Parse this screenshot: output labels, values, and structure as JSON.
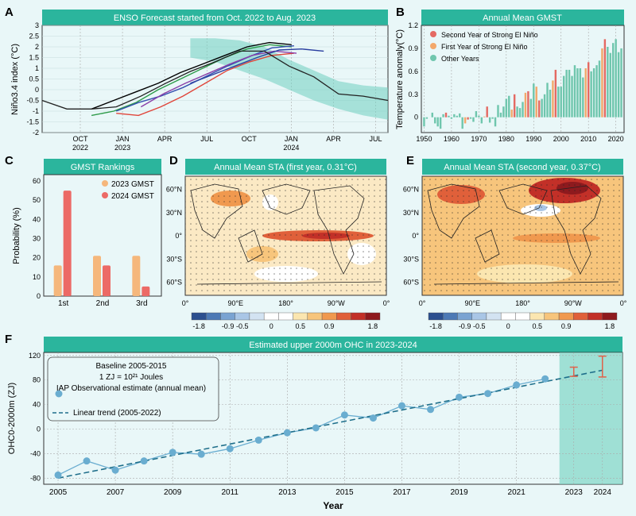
{
  "panels": {
    "A": {
      "letter": "A",
      "title": "ENSO Forecast started from Oct. 2022 to Aug. 2023",
      "ylabel": "Niño3.4 index (°C)",
      "x_ticks": [
        "OCT",
        "JAN",
        "APR",
        "JUL",
        "OCT",
        "JAN",
        "APR",
        "JUL"
      ],
      "x_years": [
        "2022",
        "2023",
        "2024"
      ]
    },
    "B": {
      "letter": "B",
      "title": "Annual Mean GMST",
      "ylabel": "Temperature anomaly(°C)"
    },
    "C": {
      "letter": "C",
      "title": "GMST Rankings",
      "ylabel": "Probability (%)"
    },
    "D": {
      "letter": "D",
      "title": "Annual Mean STA (first year, 0.31°C)"
    },
    "E": {
      "letter": "E",
      "title": "Annual Mean STA (second year, 0.37°C)"
    },
    "F": {
      "letter": "F",
      "title": "Estimated upper 2000m OHC in 2023-2024",
      "ylabel": "OHC0-2000m (ZJ)",
      "xlabel": "Year",
      "baseline": "Baseline 2005-2015",
      "zj_note": "1 ZJ = 10²¹ Joules"
    }
  },
  "map_axes": {
    "lat_ticks": [
      "60°N",
      "30°N",
      "0°",
      "30°S",
      "60°S"
    ],
    "lon_ticks": [
      "0°",
      "90°E",
      "180°",
      "90°W",
      "0°"
    ]
  },
  "colorbar": {
    "ticks": [
      "-1.8",
      "-0.9",
      "-0.5",
      "0",
      "0.5",
      "0.9",
      "1.8"
    ],
    "colors": [
      "#2b4f8f",
      "#4c79b5",
      "#7aa3d2",
      "#a9c6e6",
      "#d3e3f2",
      "#ffffff",
      "#ffffff",
      "#fbe6b0",
      "#f7c57c",
      "#f0994f",
      "#e0603a",
      "#c23028",
      "#8e1a1e"
    ]
  },
  "chart_data": [
    {
      "type": "line",
      "title": "ENSO Forecast started from Oct. 2022 to Aug. 2023",
      "ylabel": "Niño3.4 index (°C)",
      "ylim": [
        -2,
        3
      ],
      "x_labels": [
        "OCT 2022",
        "JAN 2023",
        "APR",
        "JUL",
        "OCT",
        "JAN 2024",
        "APR",
        "JUL"
      ],
      "observed": [
        -0.5,
        -0.9,
        -0.9,
        -0.8,
        -0.3,
        0.3,
        0.85,
        1.3,
        1.8,
        1.8,
        1.1,
        0.6,
        -0.2,
        -0.3,
        -0.5
      ],
      "forecasts": [
        {
          "color": "#000000",
          "values": [
            -0.9,
            -0.5,
            -0.1,
            0.3,
            0.8,
            1.2,
            1.6,
            2.0,
            2.2,
            2.1
          ]
        },
        {
          "color": "#2e9b4a",
          "values": [
            -1.2,
            -1.0,
            -0.6,
            0.0,
            0.5,
            1.0,
            1.5,
            1.9,
            2.1,
            2.0
          ]
        },
        {
          "color": "#3550b0",
          "values": [
            -1.0,
            -0.6,
            -0.3,
            0.1,
            0.6,
            1.1,
            1.55,
            1.95,
            2.05
          ]
        },
        {
          "color": "#e0453a",
          "values": [
            -1.1,
            -1.2,
            -0.8,
            -0.3,
            0.3,
            0.9,
            1.3,
            1.6,
            1.7
          ]
        },
        {
          "color": "#8a3fa8",
          "values": [
            -0.8,
            -0.2,
            0.3,
            0.75,
            1.2,
            1.6,
            1.8,
            1.7
          ]
        },
        {
          "color": "#2a3fa0",
          "values": [
            0.3,
            0.7,
            1.1,
            1.5,
            1.85,
            1.9,
            1.8
          ]
        }
      ],
      "spread_upper": [
        2.4,
        2.4,
        2.3,
        2.0,
        1.4,
        0.9,
        0.4,
        0.2,
        0.1
      ],
      "spread_lower": [
        1.5,
        1.3,
        0.9,
        0.5,
        0.0,
        -0.5,
        -0.9,
        -1.2,
        -1.4
      ]
    },
    {
      "type": "bar",
      "title": "Annual Mean GMST",
      "ylabel": "Temperature anomaly(°C)",
      "ylim": [
        -0.2,
        1.2
      ],
      "x_ticks": [
        "1950",
        "1960",
        "1970",
        "1980",
        "1990",
        "2000",
        "2010",
        "2020"
      ],
      "legend": [
        "Second Year of Strong El Niño",
        "First Year of Strong El Niño",
        "Other Years"
      ],
      "series_colors": {
        "second": "#e46a63",
        "first": "#f3a86b",
        "other": "#6fc6ad"
      },
      "x": [
        1950,
        1951,
        1952,
        1953,
        1954,
        1955,
        1956,
        1957,
        1958,
        1959,
        1960,
        1961,
        1962,
        1963,
        1964,
        1965,
        1966,
        1967,
        1968,
        1969,
        1970,
        1971,
        1972,
        1973,
        1974,
        1975,
        1976,
        1977,
        1978,
        1979,
        1980,
        1981,
        1982,
        1983,
        1984,
        1985,
        1986,
        1987,
        1988,
        1989,
        1990,
        1991,
        1992,
        1993,
        1994,
        1995,
        1996,
        1997,
        1998,
        1999,
        2000,
        2001,
        2002,
        2003,
        2004,
        2005,
        2006,
        2007,
        2008,
        2009,
        2010,
        2011,
        2012,
        2013,
        2014,
        2015,
        2016,
        2017,
        2018,
        2019,
        2020,
        2021,
        2022
      ],
      "values": [
        -0.12,
        -0.02,
        0.0,
        0.06,
        -0.08,
        -0.12,
        -0.15,
        0.04,
        0.06,
        0.02,
        -0.02,
        0.04,
        0.02,
        0.05,
        -0.15,
        -0.08,
        -0.03,
        -0.02,
        -0.06,
        0.08,
        0.02,
        -0.08,
        0.01,
        0.14,
        -0.07,
        -0.02,
        -0.12,
        0.16,
        0.06,
        0.14,
        0.24,
        0.28,
        0.1,
        0.3,
        0.14,
        0.12,
        0.2,
        0.32,
        0.34,
        0.24,
        0.44,
        0.4,
        0.22,
        0.24,
        0.3,
        0.45,
        0.36,
        0.48,
        0.62,
        0.4,
        0.4,
        0.54,
        0.62,
        0.62,
        0.54,
        0.68,
        0.64,
        0.64,
        0.52,
        0.64,
        0.72,
        0.6,
        0.64,
        0.68,
        0.74,
        0.9,
        1.02,
        0.92,
        0.84,
        0.97,
        1.02,
        0.85,
        0.9
      ],
      "category": [
        "o",
        "o",
        "o",
        "o",
        "o",
        "o",
        "o",
        "o",
        "s",
        "o",
        "o",
        "o",
        "o",
        "o",
        "o",
        "f",
        "s",
        "o",
        "o",
        "o",
        "o",
        "o",
        "f",
        "s",
        "o",
        "o",
        "o",
        "o",
        "o",
        "o",
        "o",
        "o",
        "f",
        "s",
        "o",
        "o",
        "o",
        "f",
        "s",
        "o",
        "o",
        "f",
        "s",
        "o",
        "o",
        "o",
        "o",
        "f",
        "s",
        "o",
        "o",
        "o",
        "o",
        "o",
        "o",
        "o",
        "o",
        "o",
        "o",
        "f",
        "s",
        "o",
        "o",
        "o",
        "o",
        "f",
        "s",
        "o",
        "o",
        "o",
        "o",
        "o",
        "o"
      ]
    },
    {
      "type": "bar",
      "title": "GMST Rankings",
      "ylabel": "Probability (%)",
      "ylim": [
        0,
        60
      ],
      "categories": [
        "1st",
        "2nd",
        "3rd"
      ],
      "series": [
        {
          "name": "2023 GMST",
          "color": "#f5b77c",
          "values": [
            16,
            21,
            21
          ]
        },
        {
          "name": "2024 GMST",
          "color": "#ec6a66",
          "values": [
            55,
            16,
            5
          ]
        }
      ]
    },
    {
      "type": "scatter",
      "title": "Estimated upper 2000m OHC in 2023-2024",
      "xlabel": "Year",
      "ylabel": "OHC0-2000m (ZJ)",
      "ylim": [
        -80,
        120
      ],
      "x_ticks": [
        "2005",
        "2007",
        "2009",
        "2011",
        "2013",
        "2015",
        "2017",
        "2019",
        "2021",
        "2023",
        "2024"
      ],
      "series": [
        {
          "name": "IAP Observational estimate (annual mean)",
          "color": "#6aadd0",
          "x": [
            2005,
            2006,
            2007,
            2008,
            2009,
            2010,
            2011,
            2012,
            2013,
            2014,
            2015,
            2016,
            2017,
            2018,
            2019,
            2020,
            2021,
            2022
          ],
          "y": [
            -75,
            -52,
            -67,
            -52,
            -38,
            -41,
            -32,
            -18,
            -6,
            2,
            23,
            18,
            38,
            32,
            52,
            58,
            72,
            82
          ]
        },
        {
          "name": "Linear trend (2005-2022)",
          "color": "#1f6f8b",
          "x": [
            2005,
            2024
          ],
          "y": [
            -80,
            96
          ]
        }
      ],
      "error_bars": [
        {
          "x": 2023,
          "low": 86,
          "high": 101,
          "color": "#e0614a"
        },
        {
          "x": 2024,
          "low": 85,
          "high": 119,
          "color": "#e0614a"
        }
      ]
    }
  ]
}
